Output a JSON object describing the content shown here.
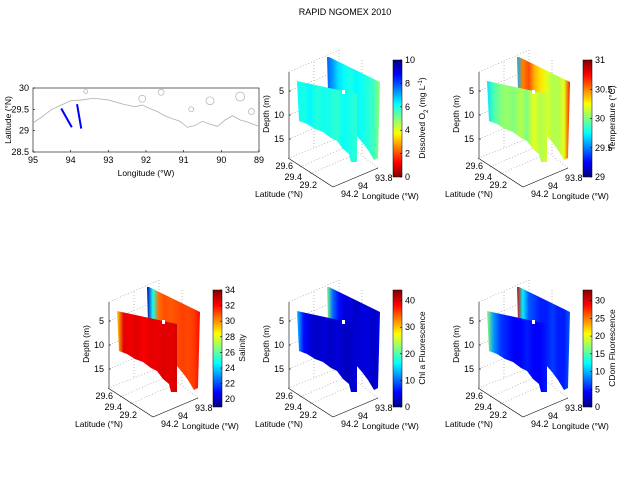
{
  "figure": {
    "title": "RAPID NGOMEX 2010"
  },
  "chart_data": [
    {
      "type": "map",
      "xlabel": "Longitude (°W)",
      "ylabel": "Latitude (°N)",
      "xlim": [
        95,
        89
      ],
      "ylim": [
        28.5,
        30
      ],
      "xticks": [
        "95",
        "94",
        "93",
        "92",
        "91",
        "90",
        "89"
      ],
      "yticks": [
        "30",
        "29.5",
        "29",
        "28.5"
      ],
      "coastline_color": "#b0b0b0",
      "transect_color": "#0000ff",
      "transects": [
        {
          "lon": [
            94.25,
            93.97
          ],
          "lat": [
            29.52,
            29.08
          ]
        },
        {
          "lon": [
            93.83,
            93.72
          ],
          "lat": [
            29.62,
            29.05
          ]
        }
      ],
      "coastline": [
        [
          95,
          29.18
        ],
        [
          94.8,
          29.3
        ],
        [
          94.5,
          29.5
        ],
        [
          94.2,
          29.62
        ],
        [
          94.0,
          29.7
        ],
        [
          93.7,
          29.72
        ],
        [
          93.4,
          29.76
        ],
        [
          93.0,
          29.72
        ],
        [
          92.6,
          29.62
        ],
        [
          92.3,
          29.56
        ],
        [
          92.1,
          29.6
        ],
        [
          91.9,
          29.52
        ],
        [
          91.7,
          29.45
        ],
        [
          91.5,
          29.35
        ],
        [
          91.3,
          29.28
        ],
        [
          91.1,
          29.22
        ],
        [
          90.9,
          29.08
        ],
        [
          90.7,
          29.12
        ],
        [
          90.5,
          29.22
        ],
        [
          90.3,
          29.15
        ],
        [
          90.1,
          29.1
        ],
        [
          89.9,
          29.25
        ],
        [
          89.7,
          29.35
        ],
        [
          89.5,
          29.25
        ],
        [
          89.3,
          29.2
        ],
        [
          89.0,
          29.1
        ]
      ]
    },
    {
      "type": "3d-curtain",
      "variable": "Dissolved O2",
      "colorbar_label": "Dissolved O",
      "colorbar_sub": "2",
      "colorbar_unit": " (mg L",
      "colorbar_sup": "-1",
      "colorbar_end": ")",
      "clim": [
        0,
        10
      ],
      "colormap": "jet-reversed",
      "colorbar_ticks": [
        "0",
        "2",
        "4",
        "6",
        "8",
        "10"
      ],
      "front_transect": [
        6.2,
        6.0,
        6.3,
        5.9,
        6.1,
        6.0,
        5.8,
        6.2,
        6.0,
        5.8
      ],
      "back_transect": [
        7.8,
        7.2,
        6.5,
        6.2,
        6.0,
        6.3,
        6.1,
        5.9,
        5.6,
        4.8
      ]
    },
    {
      "type": "3d-curtain",
      "variable": "Temperature",
      "colorbar_label": "Temperature (°C)",
      "clim": [
        29,
        31
      ],
      "colormap": "jet",
      "colorbar_ticks": [
        "29",
        "29.5",
        "30",
        "30.5",
        "31"
      ],
      "front_transect": [
        29.7,
        29.9,
        30.0,
        30.05,
        30.0,
        30.1,
        30.0,
        30.2,
        30.1,
        30.15
      ],
      "back_transect": [
        29.6,
        30.5,
        30.6,
        30.4,
        30.3,
        30.2,
        30.1,
        30.1,
        30.2,
        30.7
      ]
    },
    {
      "type": "3d-curtain",
      "variable": "Salinity",
      "colorbar_label": "Salinity",
      "clim": [
        19,
        34
      ],
      "colormap": "jet",
      "colorbar_ticks": [
        "20",
        "22",
        "24",
        "26",
        "28",
        "30",
        "32",
        "34"
      ],
      "front_transect": [
        29,
        32.5,
        32.3,
        32.6,
        32.2,
        32.5,
        32.4,
        32.6,
        32.5,
        32.7
      ],
      "back_transect": [
        20,
        25,
        30.5,
        31,
        30.8,
        31,
        31.2,
        31.1,
        31.3,
        32
      ]
    },
    {
      "type": "3d-curtain",
      "variable": "Chl a Fluorescence",
      "colorbar_label": "Chl a Fluorescence",
      "clim": [
        0,
        44
      ],
      "colormap": "jet",
      "colorbar_ticks": [
        "0",
        "10",
        "20",
        "30",
        "40"
      ],
      "front_transect": [
        14,
        6,
        4,
        3,
        4,
        3,
        4,
        3,
        3,
        4
      ],
      "back_transect": [
        22,
        10,
        6,
        4,
        4,
        3,
        4,
        4,
        3,
        5
      ]
    },
    {
      "type": "3d-curtain",
      "variable": "CDom Fluorescence",
      "colorbar_label": "CDom Fluorescence",
      "clim": [
        0,
        33
      ],
      "colormap": "jet",
      "colorbar_ticks": [
        "0",
        "5",
        "10",
        "15",
        "20",
        "25",
        "30"
      ],
      "front_transect": [
        17,
        9,
        6,
        5,
        4,
        4,
        5,
        4,
        4,
        5
      ],
      "back_transect": [
        30,
        12,
        7,
        6,
        5,
        5,
        6,
        5,
        5,
        7
      ]
    }
  ],
  "axes3d": {
    "depth_label": "Depth (m)",
    "depth_ticks": [
      "5",
      "10",
      "15"
    ],
    "lat_label": "Latitude (°N)",
    "lat_ticks": [
      "29.6",
      "29.4",
      "29.2"
    ],
    "lon_label": "Longitude (°W)",
    "lon_ticks": [
      "94.2",
      "94",
      "93.8"
    ]
  }
}
